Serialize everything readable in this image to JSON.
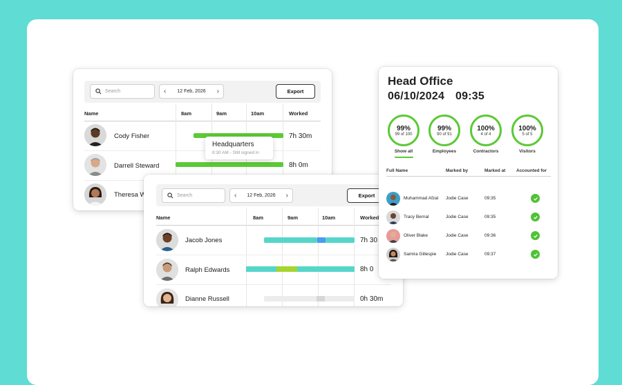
{
  "colors": {
    "background": "#5fdcd4",
    "accent_green": "#5cc937",
    "teal_bar": "#56d6c9",
    "blue_bar": "#4a9cf0",
    "lime_bar": "#a7d42e",
    "grey_bar": "#ececec"
  },
  "card_back": {
    "search_placeholder": "Search",
    "date": "12 Feb, 2026",
    "export_label": "Export",
    "columns": {
      "name": "Name",
      "h8": "8am",
      "h9": "9am",
      "h10": "10am",
      "worked": "Worked"
    },
    "rows": [
      {
        "name": "Cody Fisher",
        "worked": "7h 30m"
      },
      {
        "name": "Darrell Steward",
        "worked": "8h 0m"
      },
      {
        "name": "Theresa W",
        "worked": ""
      }
    ],
    "tooltip": {
      "title": "Headquarters",
      "detail": "8:30 AM - Still signed in"
    }
  },
  "card_front": {
    "search_placeholder": "Search",
    "date": "12 Feb, 2026",
    "export_label": "Export",
    "columns": {
      "name": "Name",
      "h8": "8am",
      "h9": "9am",
      "h10": "10am",
      "worked": "Worked"
    },
    "rows": [
      {
        "name": "Jacob Jones",
        "worked": "7h 30"
      },
      {
        "name": "Ralph Edwards",
        "worked": "8h 0"
      },
      {
        "name": "Dianne Russell",
        "worked": "0h 30m"
      }
    ]
  },
  "head_office": {
    "title": "Head Office",
    "date": "06/10/2024",
    "time": "09:35",
    "stats": [
      {
        "pct": "99%",
        "count": "99 of 100",
        "label": "Show all"
      },
      {
        "pct": "99%",
        "count": "90 of 91",
        "label": "Employees"
      },
      {
        "pct": "100%",
        "count": "4 of 4",
        "label": "Contractors"
      },
      {
        "pct": "100%",
        "count": "5 of 5",
        "label": "Visitors"
      }
    ],
    "columns": {
      "full_name": "Full Name",
      "marked_by": "Marked by",
      "marked_at": "Marked at",
      "accounted": "Accounted for"
    },
    "rows": [
      {
        "name": "Muhammad Afzal",
        "marked_by": "Jodie Case",
        "marked_at": "09:35"
      },
      {
        "name": "Tracy Bernal",
        "marked_by": "Jodie Case",
        "marked_at": "09:35"
      },
      {
        "name": "Oliver Blake",
        "marked_by": "Jodie Case",
        "marked_at": "09:36"
      },
      {
        "name": "Samira Gillespie",
        "marked_by": "Jodie Case",
        "marked_at": "09:37"
      }
    ]
  }
}
